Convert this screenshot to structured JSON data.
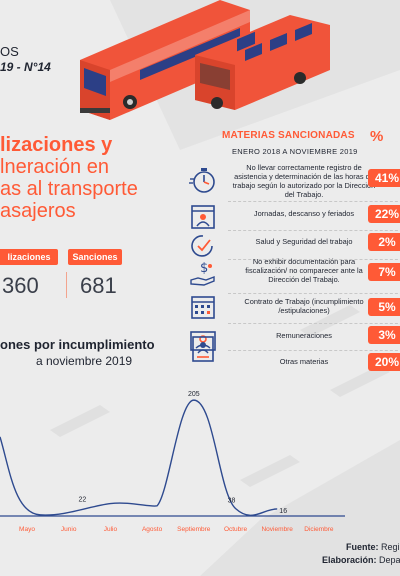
{
  "header": {
    "os_text": "OS",
    "issue": "19 - N°14"
  },
  "title": {
    "line1": "lizaciones y",
    "line2": "lneración en",
    "line3": "as al transporte",
    "line4": "asajeros"
  },
  "stats": {
    "fiscalizaciones_label": "lizaciones",
    "fiscalizaciones_value": "360",
    "sanciones_label": "Sanciones",
    "sanciones_value": "681"
  },
  "subtitle": {
    "line1": "ones por incumplimiento",
    "line2": "a noviembre 2019"
  },
  "panel": {
    "title": "MATERIAS SANCIONADAS",
    "pct_symbol": "%",
    "date": "ENERO 2018 A NOVIEMBRE 2019",
    "rows": [
      {
        "icon": "stopwatch-icon",
        "text": "No llevar correctamente registro de asistencia y determinación de las horas de trabajo según lo autorizado por la Dirección del Trabajo.",
        "pct": "41%"
      },
      {
        "icon": "calendar-person-icon",
        "text": "Jornadas, descanso y feriados",
        "pct": "22%"
      },
      {
        "icon": "clock-check-icon",
        "text": "Salud y Seguridad del trabajo",
        "pct": "2%"
      },
      {
        "icon": "hand-money-icon",
        "text": "No exhibir documentación para fiscalización/ no comparecer ante la Dirección del Trabajo.",
        "pct": "7%"
      },
      {
        "icon": "calendar-grid-icon",
        "text": "Contrato de Trabajo (incumplimiento /estipulaciones)",
        "pct": "5%"
      },
      {
        "icon": "money-bill-icon",
        "text": "Remuneraciones",
        "pct": "3%"
      },
      {
        "icon": "id-document-icon",
        "text": "Otras materias",
        "pct": "20%"
      }
    ]
  },
  "chart_data": {
    "type": "line",
    "categories": [
      "Mayo",
      "Junio",
      "Julio",
      "Agosto",
      "Septiembre",
      "Octubre",
      "Noviembre",
      "Diciembre"
    ],
    "labeled_values": [
      {
        "x": "Julio",
        "y": 22,
        "label": "22"
      },
      {
        "x": "Septiembre",
        "y": 205,
        "label": "205"
      },
      {
        "x": "Octubre",
        "y": 38,
        "label": "38"
      },
      {
        "x": "Noviembre",
        "y": 16,
        "label": "16"
      }
    ],
    "ylim": [
      0,
      230
    ]
  },
  "footer": {
    "fuente_label": "Fuente:",
    "fuente_value": "Regi",
    "elab_label": "Elaboración:",
    "elab_value": "Depar"
  },
  "colors": {
    "accent": "#ff5a36",
    "icon_blue": "#2e4a8f",
    "text_dark": "#1f2430",
    "bus_red": "#f0543a",
    "bus_window": "#2c3f86"
  }
}
